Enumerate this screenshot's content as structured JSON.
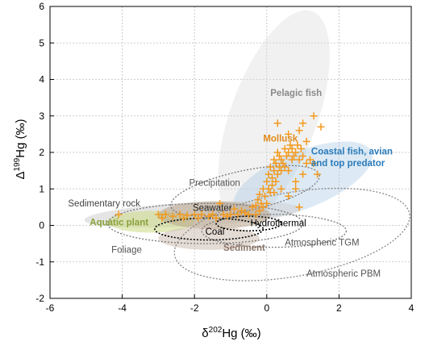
{
  "chart_data": {
    "type": "scatter",
    "xlabel_parts": [
      "δ",
      "202",
      "Hg (‰)"
    ],
    "ylabel_parts": [
      "Δ",
      "199",
      "Hg (‰)"
    ],
    "xlim": [
      -6,
      4
    ],
    "ylim": [
      -2,
      6
    ],
    "xticks": [
      -6,
      -4,
      -2,
      0,
      2,
      4
    ],
    "yticks": [
      -2,
      -1,
      0,
      1,
      2,
      3,
      4,
      5,
      6
    ],
    "grid": "dotted",
    "series": [
      {
        "name": "Mollusk",
        "marker": "plus",
        "color": "#f39a1e",
        "points": [
          [
            -4.1,
            0.3
          ],
          [
            -3.0,
            0.3
          ],
          [
            -2.9,
            0.2
          ],
          [
            -2.8,
            0.3
          ],
          [
            -2.6,
            0.25
          ],
          [
            -2.4,
            0.3
          ],
          [
            -2.3,
            0.2
          ],
          [
            -2.2,
            0.28
          ],
          [
            -2.0,
            0.3
          ],
          [
            -1.9,
            0.2
          ],
          [
            -1.8,
            0.3
          ],
          [
            -1.6,
            0.25
          ],
          [
            -1.5,
            0.3
          ],
          [
            -1.4,
            0.2
          ],
          [
            -1.3,
            0.6
          ],
          [
            -1.2,
            0.3
          ],
          [
            -1.1,
            0.25
          ],
          [
            -1.0,
            0.3
          ],
          [
            -0.9,
            0.45
          ],
          [
            -0.8,
            0.3
          ],
          [
            -0.7,
            0.4
          ],
          [
            -0.6,
            0.35
          ],
          [
            -0.5,
            0.3
          ],
          [
            -0.4,
            0.5
          ],
          [
            -0.3,
            0.55
          ],
          [
            -0.3,
            0.3
          ],
          [
            -0.25,
            0.7
          ],
          [
            -0.2,
            0.4
          ],
          [
            -0.2,
            0.85
          ],
          [
            -0.15,
            0.6
          ],
          [
            -0.1,
            1.0
          ],
          [
            -0.1,
            0.5
          ],
          [
            -0.05,
            0.8
          ],
          [
            0.0,
            1.2
          ],
          [
            0.0,
            0.6
          ],
          [
            0.05,
            1.0
          ],
          [
            0.05,
            1.4
          ],
          [
            0.1,
            0.9
          ],
          [
            0.1,
            1.6
          ],
          [
            0.15,
            1.3
          ],
          [
            0.15,
            1.1
          ],
          [
            0.2,
            1.5
          ],
          [
            0.2,
            1.8
          ],
          [
            0.25,
            1.2
          ],
          [
            0.25,
            1.7
          ],
          [
            0.3,
            1.4
          ],
          [
            0.3,
            2.0
          ],
          [
            0.35,
            1.6
          ],
          [
            0.35,
            1.9
          ],
          [
            0.4,
            1.5
          ],
          [
            0.4,
            1.8
          ],
          [
            0.45,
            1.7
          ],
          [
            0.5,
            2.1
          ],
          [
            0.5,
            1.6
          ],
          [
            0.55,
            1.9
          ],
          [
            0.6,
            1.5
          ],
          [
            0.6,
            2.0
          ],
          [
            0.65,
            2.2
          ],
          [
            0.7,
            1.8
          ],
          [
            0.7,
            2.1
          ],
          [
            0.75,
            1.9
          ],
          [
            0.8,
            2.0
          ],
          [
            0.8,
            1.2
          ],
          [
            0.85,
            2.2
          ],
          [
            0.9,
            1.8
          ],
          [
            0.95,
            2.1
          ],
          [
            1.0,
            1.9
          ],
          [
            1.0,
            1.4
          ],
          [
            1.1,
            1.7
          ],
          [
            1.2,
            1.8
          ],
          [
            1.3,
            1.7
          ],
          [
            1.4,
            1.4
          ],
          [
            1.1,
            2.3
          ],
          [
            1.3,
            3.0
          ],
          [
            1.5,
            2.7
          ],
          [
            0.3,
            2.8
          ],
          [
            0.6,
            2.5
          ],
          [
            0.9,
            2.6
          ],
          [
            1.0,
            2.8
          ],
          [
            0.4,
            1.0
          ],
          [
            0.8,
            1.0
          ],
          [
            0.9,
            0.5
          ],
          [
            0.6,
            0.8
          ],
          [
            0.2,
            0.9
          ]
        ]
      }
    ],
    "regions": [
      {
        "label": "Pelagic fish",
        "color": "#8a8a8a",
        "fill": "#d9d9d9",
        "cx": 0.2,
        "cy": 3.0,
        "rx": 1.2,
        "ry": 3.05,
        "angle": -20,
        "opacity": 0.38
      },
      {
        "label": "Coastal fish, avian and top predator",
        "color": "#2b7bba",
        "fill": "#a9cbe6",
        "cx": 1.0,
        "cy": 1.25,
        "rx": 2.05,
        "ry": 0.78,
        "angle": 22,
        "opacity": 0.4
      },
      {
        "label": "Sedimentary rock",
        "color": "#666666",
        "fill": "#cfcfcf",
        "cx": -2.05,
        "cy": 0.3,
        "rx": 3.0,
        "ry": 0.33,
        "angle": 3,
        "opacity": 0.55
      },
      {
        "label": "Aquatic plant",
        "color": "#8aa23b",
        "fill": "#cfdc8e",
        "cx": -3.2,
        "cy": 0.1,
        "rx": 1.2,
        "ry": 0.3,
        "angle": 0,
        "opacity": 0.6
      },
      {
        "label": "Seawater",
        "color": "#333333",
        "fill": "#b9a48a",
        "cx": -1.45,
        "cy": 0.28,
        "rx": 1.55,
        "ry": 0.38,
        "angle": 0,
        "opacity": 0.55
      },
      {
        "label": "Sediment",
        "color": "#777777",
        "fill": "#c9b7aa",
        "cx": -1.6,
        "cy": -0.35,
        "rx": 1.4,
        "ry": 0.32,
        "angle": 0,
        "opacity": 0.5
      },
      {
        "label": "Hydrothermal",
        "color": "#000000",
        "fill": "none",
        "cx": -0.5,
        "cy": 0.05,
        "rx": 0.9,
        "ry": 0.2,
        "angle": 0,
        "dashed": true
      },
      {
        "label": "Coal",
        "color": "#000000",
        "fill": "none",
        "cx": -1.6,
        "cy": -0.1,
        "rx": 1.5,
        "ry": 0.3,
        "angle": 0,
        "dashed": true
      },
      {
        "label": "Precipitation",
        "color": "#777777",
        "fill": "none",
        "cx": -0.6,
        "cy": 0.95,
        "rx": 2.1,
        "ry": 0.55,
        "angle": 12,
        "dashed": true
      },
      {
        "label": "Atmospheric TGM",
        "color": "#777777",
        "fill": "none",
        "cx": 0.2,
        "cy": -0.15,
        "rx": 2.0,
        "ry": 0.45,
        "angle": 0,
        "dashed": true
      },
      {
        "label": "Atmospheric PBM",
        "color": "#888888",
        "fill": "none",
        "cx": 0.7,
        "cy": -0.25,
        "rx": 3.3,
        "ry": 1.15,
        "angle": 10,
        "dashed": true
      },
      {
        "label": "Foliage",
        "color": "#777777",
        "fill": "none",
        "cx": -1.7,
        "cy": 0.05,
        "rx": 2.7,
        "ry": 0.55,
        "angle": 0,
        "dashed": true
      }
    ],
    "labels": [
      {
        "text": "Pelagic fish",
        "x": 0.1,
        "y": 3.55,
        "color": "#8a8a8a",
        "weight": "bold",
        "anchor": "start"
      },
      {
        "text": "Mollusk",
        "x": -0.1,
        "y": 2.3,
        "color": "#e08a1a",
        "weight": "bold",
        "anchor": "start"
      },
      {
        "text": "Coastal fish, avian",
        "x": 1.23,
        "y": 1.95,
        "color": "#2b7bba",
        "weight": "bold",
        "anchor": "start"
      },
      {
        "text": "and top predator",
        "x": 1.23,
        "y": 1.62,
        "color": "#2b7bba",
        "weight": "bold",
        "anchor": "start"
      },
      {
        "text": "Precipitation",
        "x": -2.15,
        "y": 1.08,
        "color": "#555555",
        "weight": "normal",
        "anchor": "start"
      },
      {
        "text": "Sedimentary rock",
        "x": -5.5,
        "y": 0.52,
        "color": "#444444",
        "weight": "normal",
        "anchor": "start"
      },
      {
        "text": "Seawater",
        "x": -2.05,
        "y": 0.4,
        "color": "#222222",
        "weight": "normal",
        "anchor": "start"
      },
      {
        "text": "Aquatic plant",
        "x": -4.9,
        "y": 0.0,
        "color": "#8aa23b",
        "weight": "bold",
        "anchor": "start"
      },
      {
        "text": "Hydrothermal",
        "x": -0.45,
        "y": -0.02,
        "color": "#000000",
        "weight": "normal",
        "anchor": "start"
      },
      {
        "text": "Coal",
        "x": -1.7,
        "y": -0.25,
        "color": "#000000",
        "weight": "normal",
        "anchor": "start"
      },
      {
        "text": "Foliage",
        "x": -4.3,
        "y": -0.75,
        "color": "#555555",
        "weight": "normal",
        "anchor": "start"
      },
      {
        "text": "Sediment",
        "x": -1.2,
        "y": -0.7,
        "color": "#8a7468",
        "weight": "bold",
        "anchor": "start"
      },
      {
        "text": "Atmospheric TGM",
        "x": 0.5,
        "y": -0.55,
        "color": "#555555",
        "weight": "normal",
        "anchor": "start"
      },
      {
        "text": "Atmospheric PBM",
        "x": 1.1,
        "y": -1.4,
        "color": "#555555",
        "weight": "normal",
        "anchor": "start"
      }
    ]
  }
}
